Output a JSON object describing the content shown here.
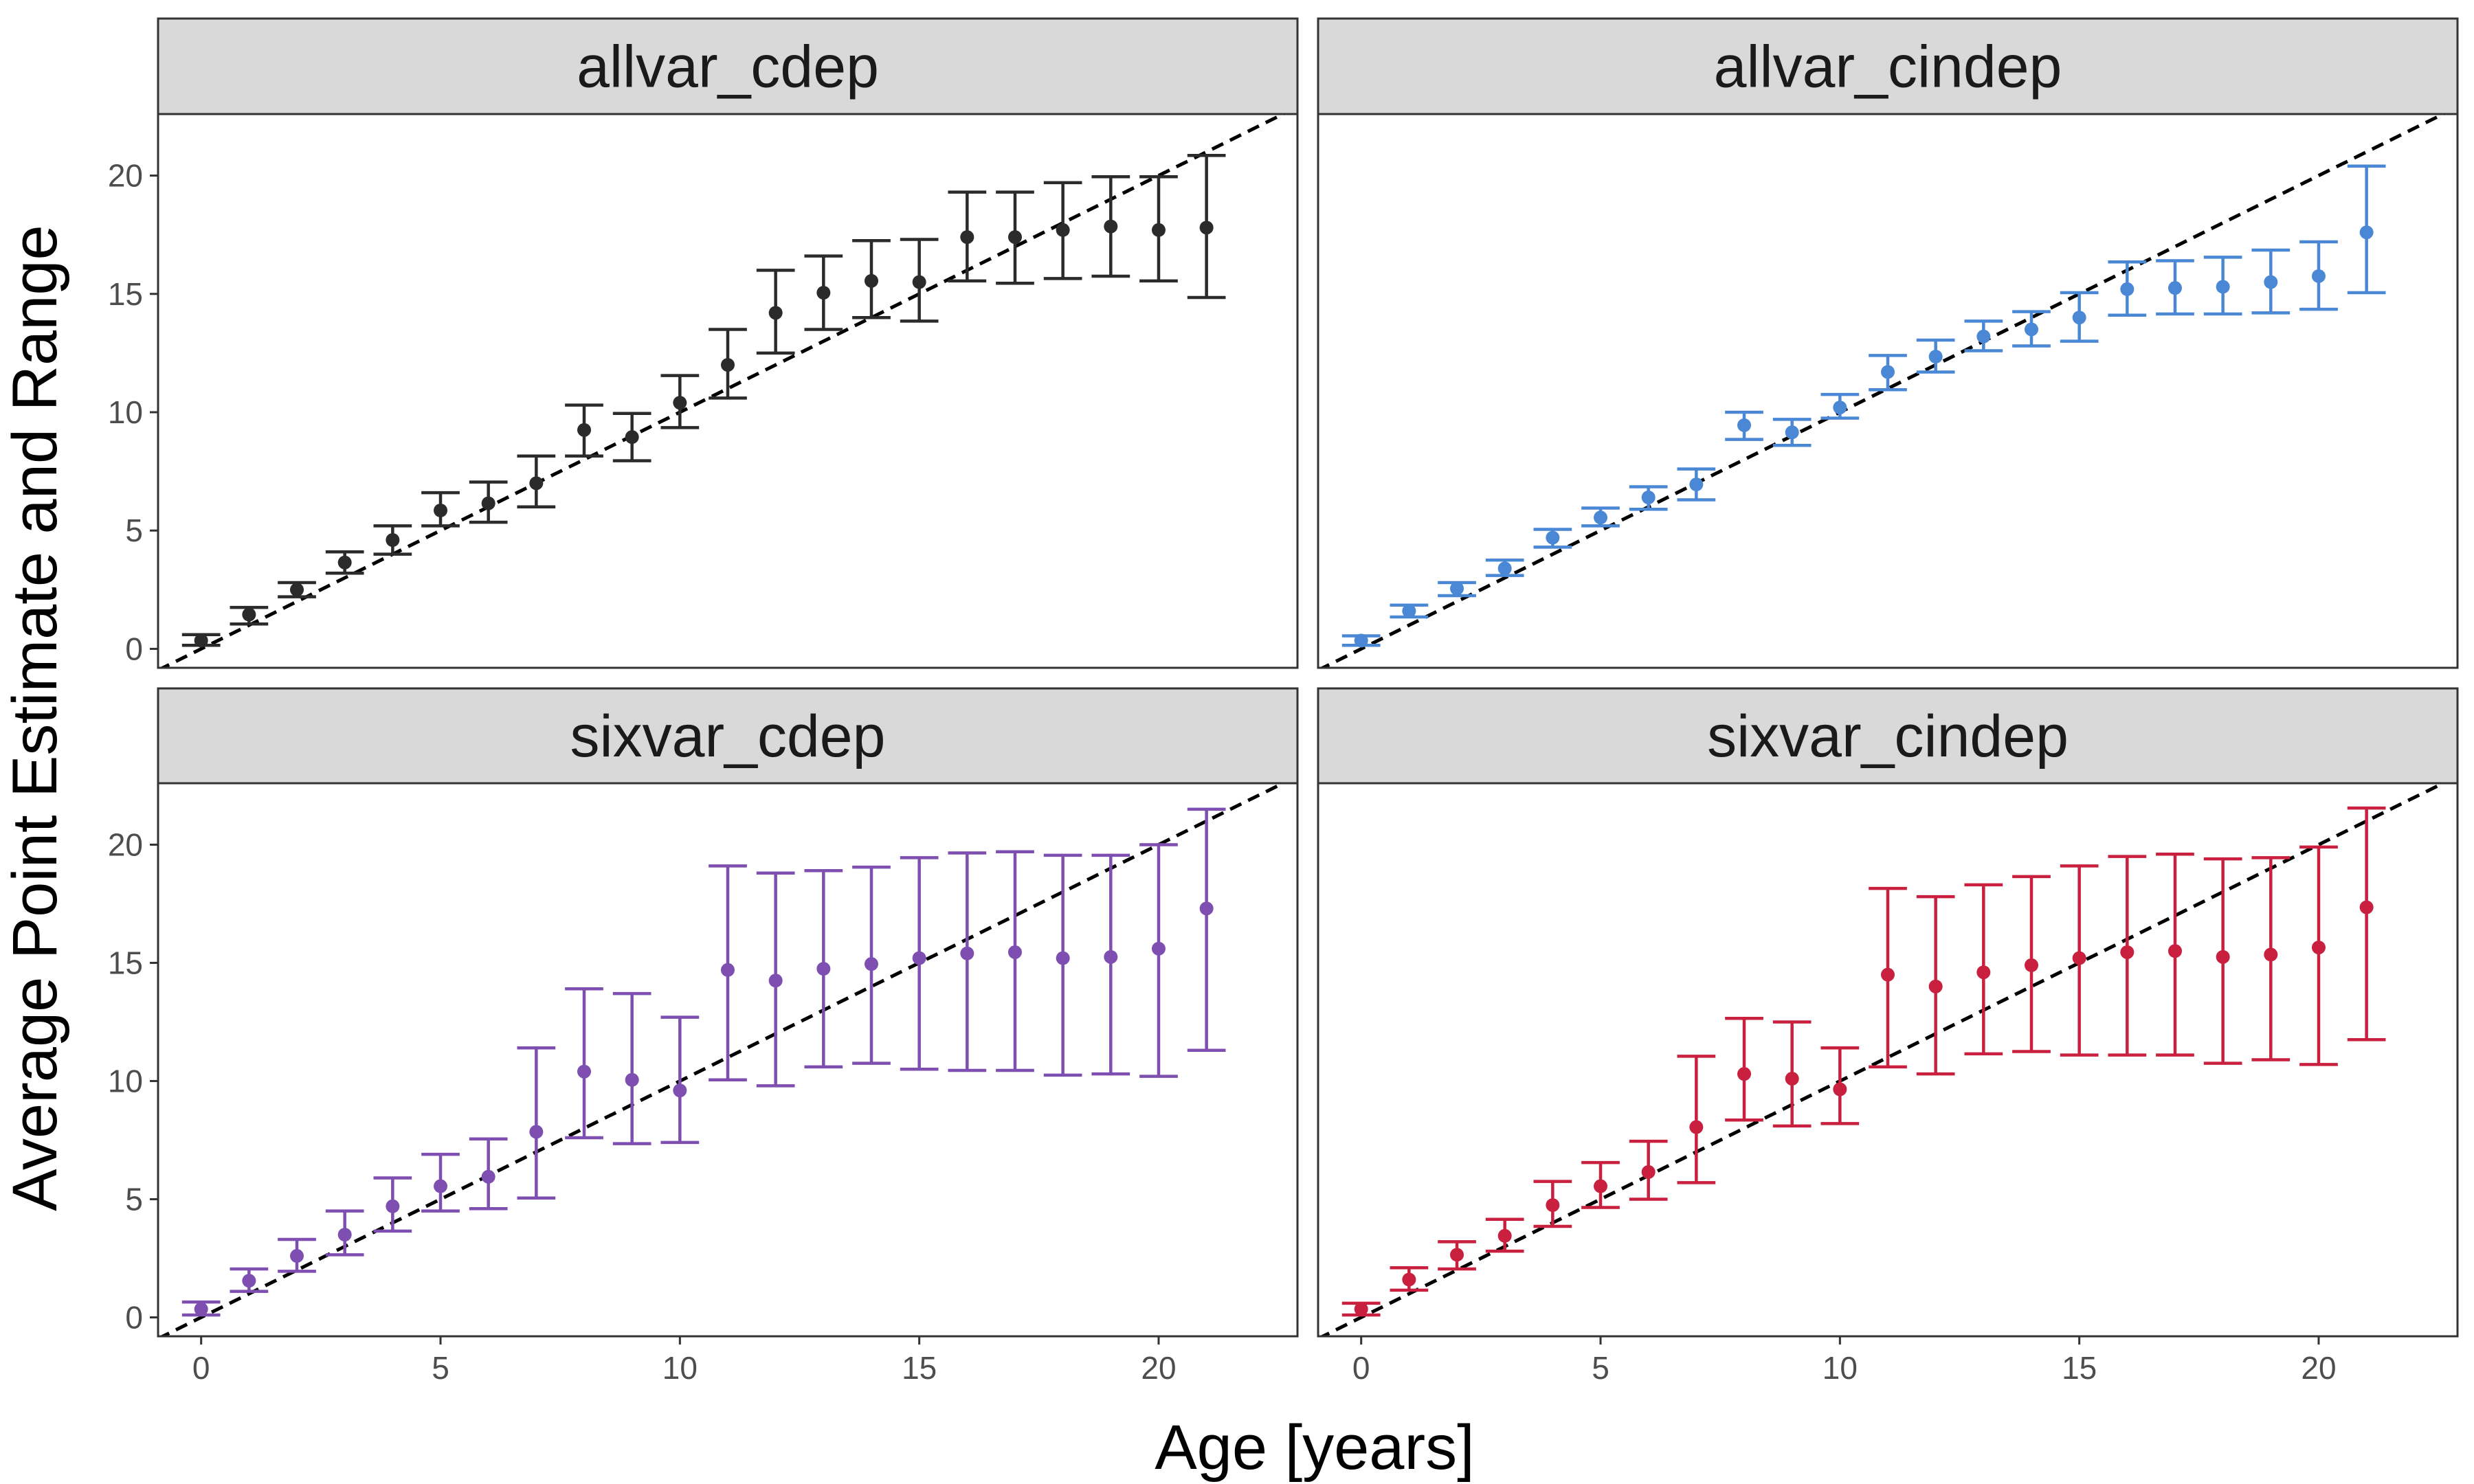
{
  "chart_data": {
    "type": "scatter",
    "layout": "facet-grid-2x2",
    "xlabel": "Age [years]",
    "ylabel": "Average Point Estimate and Range",
    "xlim": [
      -0.9,
      22.9
    ],
    "ylim": [
      -0.8,
      22.6
    ],
    "x_ticks": [
      0,
      5,
      10,
      15,
      20
    ],
    "y_ticks": [
      0,
      5,
      10,
      15,
      20
    ],
    "grid": false,
    "reference_line": {
      "type": "identity",
      "style": "dashed",
      "color": "#000000"
    },
    "panels": [
      {
        "title": "allvar_cdep",
        "color": "#2B2B2B",
        "x": [
          0,
          1,
          2,
          3,
          4,
          5,
          6,
          7,
          8,
          9,
          10,
          11,
          12,
          13,
          14,
          15,
          16,
          17,
          18,
          19,
          20,
          21
        ],
        "y": [
          0.35,
          1.45,
          2.5,
          3.65,
          4.6,
          5.85,
          6.15,
          7.0,
          9.25,
          8.95,
          10.4,
          12.0,
          14.2,
          15.05,
          15.55,
          15.5,
          17.4,
          17.4,
          17.7,
          17.85,
          17.7,
          17.8
        ],
        "ymin": [
          0.15,
          1.05,
          2.2,
          3.2,
          4.0,
          5.2,
          5.35,
          6.0,
          8.15,
          7.95,
          9.35,
          10.6,
          12.5,
          13.5,
          14.0,
          13.85,
          15.55,
          15.45,
          15.65,
          15.75,
          15.55,
          14.85
        ],
        "ymax": [
          0.6,
          1.75,
          2.8,
          4.1,
          5.2,
          6.6,
          7.05,
          8.15,
          10.3,
          9.95,
          11.55,
          13.5,
          16.0,
          16.6,
          17.25,
          17.3,
          19.3,
          19.3,
          19.7,
          19.95,
          19.95,
          20.85
        ]
      },
      {
        "title": "allvar_cindep",
        "color": "#4A88D6",
        "x": [
          0,
          1,
          2,
          3,
          4,
          5,
          6,
          7,
          8,
          9,
          10,
          11,
          12,
          13,
          14,
          15,
          16,
          17,
          18,
          19,
          20,
          21
        ],
        "y": [
          0.35,
          1.6,
          2.55,
          3.4,
          4.7,
          5.55,
          6.4,
          6.95,
          9.45,
          9.15,
          10.2,
          11.7,
          12.35,
          13.2,
          13.5,
          14.0,
          15.2,
          15.25,
          15.3,
          15.5,
          15.75,
          17.6
        ],
        "ymin": [
          0.15,
          1.35,
          2.25,
          3.1,
          4.3,
          5.2,
          5.9,
          6.3,
          8.85,
          8.6,
          9.75,
          10.95,
          11.7,
          12.6,
          12.8,
          13.0,
          14.1,
          14.15,
          14.15,
          14.2,
          14.35,
          15.05
        ],
        "ymax": [
          0.55,
          1.85,
          2.8,
          3.75,
          5.05,
          5.95,
          6.85,
          7.6,
          10.0,
          9.7,
          10.75,
          12.4,
          13.05,
          13.85,
          14.25,
          15.05,
          16.35,
          16.4,
          16.55,
          16.85,
          17.2,
          20.4
        ]
      },
      {
        "title": "sixvar_cdep",
        "color": "#7E4FB0",
        "x": [
          0,
          1,
          2,
          3,
          4,
          5,
          6,
          7,
          8,
          9,
          10,
          11,
          12,
          13,
          14,
          15,
          16,
          17,
          18,
          19,
          20,
          21
        ],
        "y": [
          0.35,
          1.55,
          2.6,
          3.5,
          4.7,
          5.55,
          5.95,
          7.85,
          10.4,
          10.05,
          9.6,
          14.7,
          14.25,
          14.75,
          14.95,
          15.2,
          15.4,
          15.45,
          15.2,
          15.25,
          15.6,
          17.3
        ],
        "ymin": [
          0.1,
          1.1,
          1.95,
          2.65,
          3.65,
          4.5,
          4.6,
          5.05,
          7.6,
          7.35,
          7.4,
          10.05,
          9.8,
          10.6,
          10.75,
          10.5,
          10.45,
          10.45,
          10.25,
          10.3,
          10.2,
          11.3
        ],
        "ymax": [
          0.65,
          2.05,
          3.3,
          4.5,
          5.9,
          6.9,
          7.55,
          11.4,
          13.9,
          13.7,
          12.7,
          19.1,
          18.8,
          18.9,
          19.05,
          19.45,
          19.65,
          19.7,
          19.55,
          19.55,
          20.0,
          21.5
        ]
      },
      {
        "title": "sixvar_cindep",
        "color": "#C8203E",
        "x": [
          0,
          1,
          2,
          3,
          4,
          5,
          6,
          7,
          8,
          9,
          10,
          11,
          12,
          13,
          14,
          15,
          16,
          17,
          18,
          19,
          20,
          21
        ],
        "y": [
          0.35,
          1.6,
          2.65,
          3.45,
          4.75,
          5.55,
          6.15,
          8.05,
          10.3,
          10.1,
          9.65,
          14.5,
          14.0,
          14.6,
          14.9,
          15.2,
          15.45,
          15.5,
          15.25,
          15.35,
          15.65,
          17.35
        ],
        "ymin": [
          0.1,
          1.15,
          2.05,
          2.8,
          3.85,
          4.65,
          5.0,
          5.7,
          8.35,
          8.1,
          8.2,
          10.6,
          10.3,
          11.15,
          11.25,
          11.1,
          11.1,
          11.1,
          10.75,
          10.9,
          10.7,
          11.75
        ],
        "ymax": [
          0.6,
          2.1,
          3.2,
          4.15,
          5.75,
          6.55,
          7.45,
          11.05,
          12.65,
          12.5,
          11.4,
          18.15,
          17.8,
          18.3,
          18.65,
          19.1,
          19.5,
          19.6,
          19.4,
          19.45,
          19.9,
          21.55
        ]
      }
    ]
  }
}
